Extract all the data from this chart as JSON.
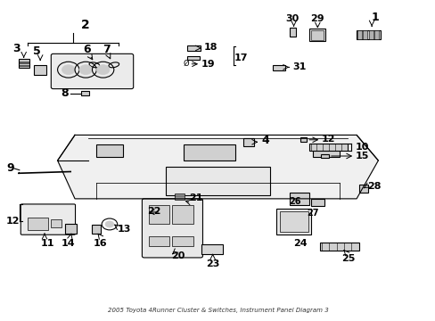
{
  "title": "2005 Toyota 4Runner Cluster & Switches, Instrument Panel Diagram 3",
  "bg_color": "#ffffff",
  "line_color": "#000000",
  "fig_width": 4.89,
  "fig_height": 3.6,
  "dpi": 100,
  "font_size_labels": 9,
  "font_size_numbers": 8,
  "font_size_small": 7
}
